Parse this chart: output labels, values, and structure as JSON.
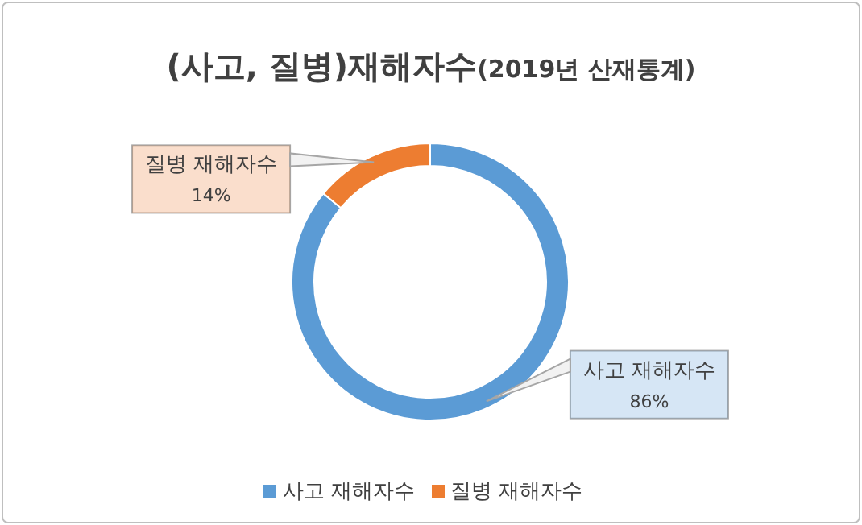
{
  "chart_data": {
    "type": "donut",
    "title": "(사고, 질병)재해자수",
    "subtitle": "(2019년 산재통계)",
    "categories": [
      "사고 재해자수",
      "질병 재해자수"
    ],
    "values": [
      86,
      14
    ],
    "colors": [
      "#5b9bd5",
      "#ed7d31"
    ],
    "value_labels": [
      "86%",
      "14%"
    ],
    "legend": "bottom"
  }
}
